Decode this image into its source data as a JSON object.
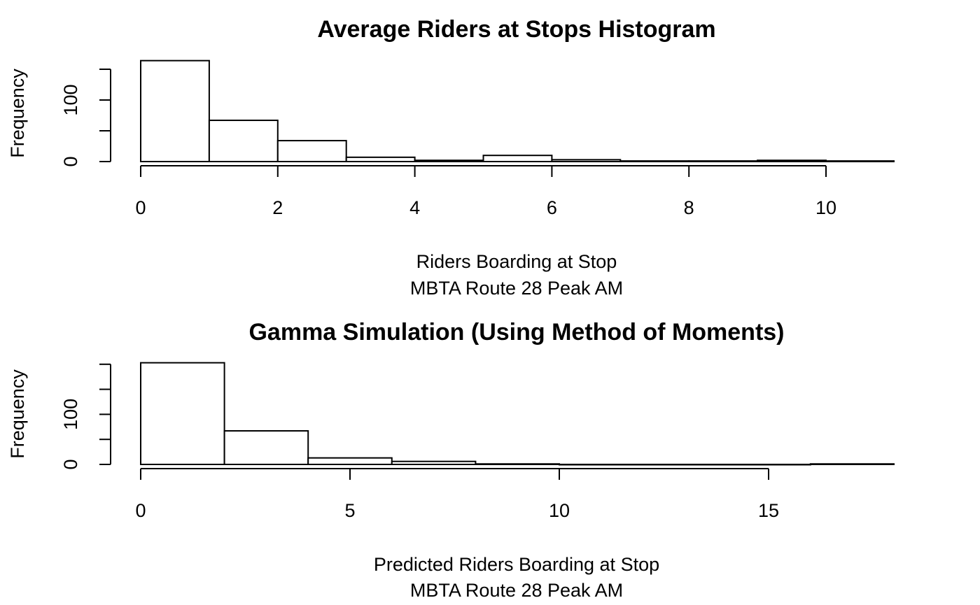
{
  "chart_data": [
    {
      "type": "bar",
      "title": "Average Riders at Stops Histogram",
      "xlabel": "Riders Boarding at Stop",
      "xlabel2": "MBTA Route 28 Peak AM",
      "ylabel": "Frequency",
      "bin_edges": [
        0,
        1,
        2,
        3,
        4,
        5,
        6,
        7,
        8,
        9,
        10,
        11
      ],
      "values": [
        164,
        67,
        34,
        7,
        2,
        10,
        3,
        1,
        1,
        2,
        1
      ],
      "xlim": [
        0,
        11
      ],
      "ylim": [
        0,
        164
      ],
      "x_ticks": [
        0,
        2,
        4,
        6,
        8,
        10
      ],
      "x_tick_labels": [
        "0",
        "2",
        "4",
        "6",
        "8",
        "10"
      ],
      "y_ticks": [
        0,
        50,
        100,
        150
      ],
      "y_tick_labels": [
        "0",
        "100"
      ],
      "y_tick_label_values": [
        0,
        100
      ],
      "grid": false
    },
    {
      "type": "bar",
      "title": "Gamma Simulation (Using Method of Moments)",
      "xlabel": "Predicted Riders Boarding at Stop",
      "xlabel2": "MBTA Route 28 Peak AM",
      "ylabel": "Frequency",
      "bin_edges": [
        0,
        2,
        4,
        6,
        8,
        10,
        12,
        14,
        16,
        18
      ],
      "values": [
        203,
        67,
        13,
        6,
        1,
        0,
        0,
        0,
        1
      ],
      "xlim": [
        0,
        18
      ],
      "ylim": [
        0,
        200
      ],
      "x_ticks": [
        0,
        5,
        10,
        15
      ],
      "x_tick_labels": [
        "0",
        "5",
        "10",
        "15"
      ],
      "y_ticks": [
        0,
        50,
        100,
        150,
        200
      ],
      "y_tick_labels": [
        "0",
        "100"
      ],
      "y_tick_label_values": [
        0,
        100
      ],
      "grid": false
    }
  ]
}
